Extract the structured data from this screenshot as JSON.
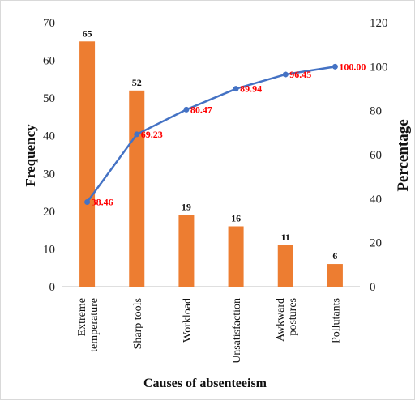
{
  "chart_data": {
    "type": "bar",
    "xlabel": "Causes of absenteeism",
    "ylabel": "Frequency",
    "y2label": "Percentage",
    "categories": [
      [
        "Extreme",
        "temperature"
      ],
      [
        "Sharp tools"
      ],
      [
        "Workload"
      ],
      [
        "Unsatisfaction"
      ],
      [
        "Awkward",
        "postures"
      ],
      [
        "Pollutants"
      ]
    ],
    "series": [
      {
        "type": "bar",
        "axis": "left",
        "values": [
          65,
          52,
          19,
          16,
          11,
          6
        ]
      },
      {
        "type": "line",
        "axis": "right",
        "values": [
          38.46,
          69.23,
          80.47,
          89.94,
          96.45,
          100.0
        ],
        "labels": [
          "38.46",
          "69.23",
          "80.47",
          "89.94",
          "96.45",
          "100.00"
        ]
      }
    ],
    "ylim": [
      0,
      70
    ],
    "y_ticks": [
      0,
      10,
      20,
      30,
      40,
      50,
      60,
      70
    ],
    "y2lim": [
      0,
      120
    ],
    "y2_ticks": [
      0,
      20,
      40,
      60,
      80,
      100,
      120
    ],
    "grid": false,
    "legend": "none",
    "colors": {
      "bar": "#ED7D31",
      "line": "#4472C4",
      "line_label": "#FF0000"
    }
  }
}
